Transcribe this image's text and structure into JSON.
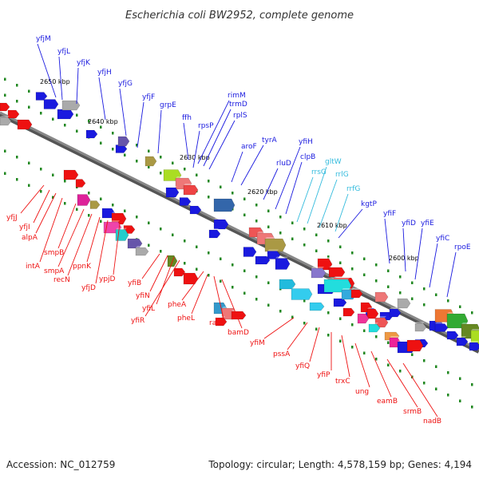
{
  "title": "Escherichia coli BW2952, complete genome",
  "footer": {
    "accession": "Accession: NC_012759",
    "summary": "Topology: circular; Length: 4,578,159 bp; Genes: 4,194"
  },
  "colors": {
    "backbone": "#888888",
    "forward_gene": "#1a1adf",
    "reverse_gene": "#ee1111",
    "rna_gene": "#33bbdd",
    "kbp_tick": "#228822"
  },
  "kbp_markers": [
    "2650 kbp",
    "2640 kbp",
    "2630 kbp",
    "2620 kbp",
    "2610 kbp",
    "2600 kbp"
  ],
  "forward_labels": [
    {
      "text": "yfjM"
    },
    {
      "text": "yfjL"
    },
    {
      "text": "yfjK"
    },
    {
      "text": "yfjH"
    },
    {
      "text": "yfjG"
    },
    {
      "text": "yfjF"
    },
    {
      "text": "grpE"
    },
    {
      "text": "ffh"
    },
    {
      "text": "rpsP"
    },
    {
      "text": "rimM"
    },
    {
      "text": "trmD"
    },
    {
      "text": "rplS"
    },
    {
      "text": "aroF"
    },
    {
      "text": "tyrA"
    },
    {
      "text": "rluD"
    },
    {
      "text": "yfiH"
    },
    {
      "text": "clpB"
    },
    {
      "text": "rrsG"
    },
    {
      "text": "gltW"
    },
    {
      "text": "rrlG"
    },
    {
      "text": "rrfG"
    },
    {
      "text": "kgtP"
    },
    {
      "text": "yfiF"
    },
    {
      "text": "yfiD"
    },
    {
      "text": "yfiE"
    },
    {
      "text": "yfiC"
    },
    {
      "text": "rpoE"
    }
  ],
  "reverse_labels": [
    {
      "text": "yfjJ"
    },
    {
      "text": "yfjI"
    },
    {
      "text": "alpA"
    },
    {
      "text": "intA"
    },
    {
      "text": "smpB"
    },
    {
      "text": "smpA"
    },
    {
      "text": "recN"
    },
    {
      "text": "ppnK"
    },
    {
      "text": "yfjD"
    },
    {
      "text": "ypjD"
    },
    {
      "text": "yfiB"
    },
    {
      "text": "yfiN"
    },
    {
      "text": "yfiL"
    },
    {
      "text": "yfiR"
    },
    {
      "text": "pheA"
    },
    {
      "text": "pheL"
    },
    {
      "text": "raiA"
    },
    {
      "text": "bamD"
    },
    {
      "text": "yfiM"
    },
    {
      "text": "pssA"
    },
    {
      "text": "yfiQ"
    },
    {
      "text": "yfiP"
    },
    {
      "text": "trxC"
    },
    {
      "text": "ung"
    },
    {
      "text": "eamB"
    },
    {
      "text": "srmB"
    },
    {
      "text": "nadB"
    }
  ]
}
